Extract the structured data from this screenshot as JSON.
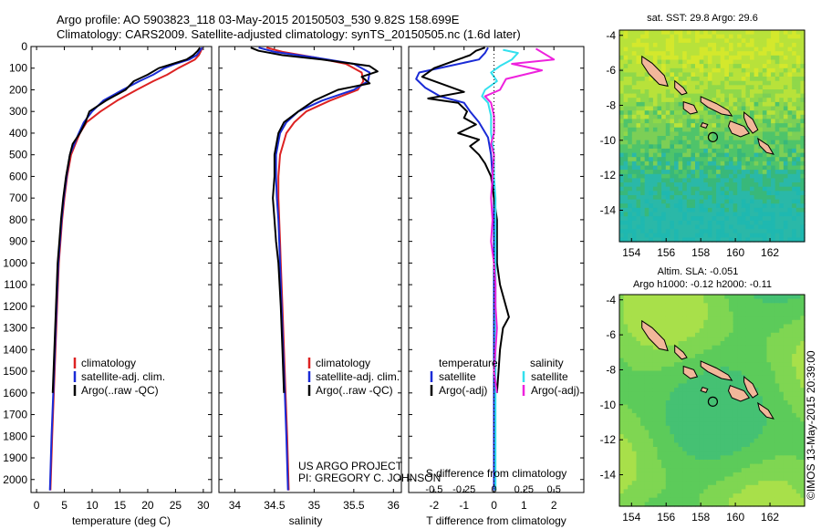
{
  "header": {
    "line1": "Argo profile: AO 5903823_118 03-May-2015 20150503_530 9.82S 158.699E",
    "line2": "Climatology: CARS2009. Satellite-adjusted climatology: synTS_20150505.nc (1.6d later)"
  },
  "credits": {
    "project": "US ARGO PROJECT",
    "pi": "PI: GREGORY C. JOHNSON",
    "imos": "©IMOS 13-May-2015 20:39:00"
  },
  "colors": {
    "climatology": "#dd2222",
    "satellite": "#1a2bd6",
    "argo": "#000000",
    "satellite_salinity": "#33e0ee",
    "argo_salinity": "#ee22dd"
  },
  "depth_axis": {
    "ylim": [
      0,
      2060
    ],
    "ticks": [
      0,
      100,
      200,
      300,
      400,
      500,
      600,
      700,
      800,
      900,
      1000,
      1100,
      1200,
      1300,
      1400,
      1500,
      1600,
      1700,
      1800,
      1900,
      2000
    ]
  },
  "chart_data": [
    {
      "type": "line",
      "id": "temperature",
      "xlabel": "temperature (deg C)",
      "xlim": [
        -1,
        31.5
      ],
      "xticks": [
        0,
        5,
        10,
        15,
        20,
        25,
        30
      ],
      "legend": [
        "climatology",
        "satellite-adj. clim.",
        "Argo(..raw -QC)"
      ],
      "series": [
        {
          "name": "climatology",
          "color_key": "climatology",
          "points": [
            [
              29.8,
              5
            ],
            [
              29.6,
              20
            ],
            [
              29.2,
              40
            ],
            [
              28.5,
              60
            ],
            [
              27.0,
              80
            ],
            [
              25.5,
              100
            ],
            [
              23.5,
              130
            ],
            [
              21.0,
              160
            ],
            [
              18.0,
              200
            ],
            [
              14.5,
              250
            ],
            [
              11.5,
              300
            ],
            [
              9.0,
              350
            ],
            [
              7.8,
              400
            ],
            [
              7.0,
              450
            ],
            [
              6.2,
              500
            ],
            [
              5.5,
              600
            ],
            [
              5.0,
              700
            ],
            [
              4.6,
              800
            ],
            [
              4.3,
              900
            ],
            [
              4.0,
              1000
            ],
            [
              3.7,
              1200
            ],
            [
              3.4,
              1400
            ],
            [
              3.1,
              1600
            ],
            [
              2.8,
              1800
            ],
            [
              2.5,
              2050
            ]
          ]
        },
        {
          "name": "satellite-adj. clim.",
          "color_key": "satellite",
          "points": [
            [
              29.8,
              5
            ],
            [
              29.4,
              20
            ],
            [
              28.8,
              40
            ],
            [
              27.5,
              60
            ],
            [
              25.0,
              80
            ],
            [
              23.0,
              100
            ],
            [
              21.0,
              130
            ],
            [
              18.5,
              160
            ],
            [
              15.5,
              200
            ],
            [
              12.0,
              250
            ],
            [
              10.0,
              300
            ],
            [
              8.5,
              350
            ],
            [
              7.6,
              400
            ],
            [
              6.8,
              450
            ],
            [
              6.0,
              500
            ],
            [
              5.4,
              600
            ],
            [
              4.9,
              700
            ],
            [
              4.5,
              800
            ],
            [
              4.2,
              900
            ],
            [
              3.9,
              1000
            ],
            [
              3.6,
              1200
            ],
            [
              3.3,
              1400
            ],
            [
              3.0,
              1600
            ],
            [
              2.7,
              1800
            ],
            [
              2.4,
              2050
            ]
          ]
        },
        {
          "name": "Argo(..raw -QC)",
          "color_key": "argo",
          "points": [
            [
              29.4,
              5
            ],
            [
              29.0,
              20
            ],
            [
              28.2,
              40
            ],
            [
              27.0,
              60
            ],
            [
              24.5,
              80
            ],
            [
              22.0,
              100
            ],
            [
              20.0,
              130
            ],
            [
              17.5,
              160
            ],
            [
              16.0,
              200
            ],
            [
              12.5,
              250
            ],
            [
              9.5,
              300
            ],
            [
              8.8,
              350
            ],
            [
              7.8,
              400
            ],
            [
              6.5,
              450
            ],
            [
              6.0,
              500
            ],
            [
              5.3,
              600
            ],
            [
              4.8,
              700
            ],
            [
              4.4,
              800
            ],
            [
              4.1,
              900
            ],
            [
              3.8,
              1000
            ],
            [
              3.5,
              1200
            ],
            [
              3.2,
              1400
            ],
            [
              2.9,
              1600
            ]
          ]
        }
      ]
    },
    {
      "type": "line",
      "id": "salinity",
      "xlabel": "salinity",
      "xlim": [
        33.8,
        36.1
      ],
      "xticks": [
        34,
        34.5,
        35,
        35.5,
        36
      ],
      "legend": [
        "climatology",
        "satellite-adj. clim.",
        "Argo(..raw -QC)"
      ],
      "series": [
        {
          "name": "climatology",
          "color_key": "climatology",
          "points": [
            [
              34.4,
              5
            ],
            [
              34.6,
              25
            ],
            [
              35.0,
              50
            ],
            [
              35.4,
              80
            ],
            [
              35.6,
              120
            ],
            [
              35.62,
              160
            ],
            [
              35.55,
              200
            ],
            [
              35.2,
              250
            ],
            [
              34.9,
              300
            ],
            [
              34.75,
              350
            ],
            [
              34.65,
              400
            ],
            [
              34.57,
              500
            ],
            [
              34.55,
              600
            ],
            [
              34.55,
              700
            ],
            [
              34.56,
              800
            ],
            [
              34.57,
              900
            ],
            [
              34.58,
              1000
            ],
            [
              34.6,
              1200
            ],
            [
              34.62,
              1400
            ],
            [
              34.64,
              1600
            ],
            [
              34.66,
              1800
            ],
            [
              34.68,
              2050
            ]
          ]
        },
        {
          "name": "satellite-adj. clim.",
          "color_key": "satellite",
          "points": [
            [
              34.3,
              5
            ],
            [
              34.5,
              25
            ],
            [
              35.0,
              50
            ],
            [
              35.5,
              80
            ],
            [
              35.7,
              120
            ],
            [
              35.68,
              160
            ],
            [
              35.5,
              200
            ],
            [
              35.1,
              250
            ],
            [
              34.8,
              300
            ],
            [
              34.65,
              350
            ],
            [
              34.57,
              400
            ],
            [
              34.52,
              500
            ],
            [
              34.52,
              600
            ],
            [
              34.53,
              700
            ],
            [
              34.55,
              800
            ],
            [
              34.56,
              900
            ],
            [
              34.57,
              1000
            ],
            [
              34.59,
              1200
            ],
            [
              34.61,
              1400
            ],
            [
              34.63,
              1600
            ],
            [
              34.65,
              1800
            ],
            [
              34.67,
              2050
            ]
          ]
        },
        {
          "name": "Argo(..raw -QC)",
          "color_key": "argo",
          "points": [
            [
              34.2,
              5
            ],
            [
              34.3,
              20
            ],
            [
              34.6,
              40
            ],
            [
              35.1,
              60
            ],
            [
              35.7,
              90
            ],
            [
              35.8,
              115
            ],
            [
              35.6,
              140
            ],
            [
              35.7,
              170
            ],
            [
              35.3,
              200
            ],
            [
              35.0,
              250
            ],
            [
              34.8,
              300
            ],
            [
              34.62,
              350
            ],
            [
              34.55,
              400
            ],
            [
              34.5,
              500
            ],
            [
              34.5,
              600
            ],
            [
              34.48,
              700
            ],
            [
              34.5,
              800
            ],
            [
              34.52,
              900
            ],
            [
              34.55,
              1000
            ],
            [
              34.58,
              1200
            ],
            [
              34.6,
              1400
            ],
            [
              34.62,
              1600
            ]
          ]
        }
      ]
    },
    {
      "type": "line",
      "id": "difference",
      "xlabel_top": "S difference from climatology",
      "xlabel_bottom": "T difference from climatology",
      "xlim": [
        -2.85,
        3.0
      ],
      "xticks": [
        -2,
        -1,
        0,
        1,
        2
      ],
      "s_ticks": [
        -0.5,
        -0.25,
        0,
        0.25,
        0.5
      ],
      "s_tick_labels": [
        "-0.5",
        "-0.25",
        "0",
        "0.25",
        "0.5"
      ],
      "legend_headers": [
        "temperature",
        "salinity"
      ],
      "legend": [
        "satellite",
        "Argo(-adj)",
        "satellite",
        "Argo(-adj)"
      ],
      "series": [
        {
          "name": "satellite",
          "group": "temperature",
          "color_key": "satellite",
          "points": [
            [
              -0.2,
              5
            ],
            [
              -0.3,
              30
            ],
            [
              -0.5,
              60
            ],
            [
              -1.5,
              90
            ],
            [
              -2.5,
              120
            ],
            [
              -2.6,
              150
            ],
            [
              -2.3,
              190
            ],
            [
              -1.8,
              230
            ],
            [
              -1.0,
              260
            ],
            [
              -0.8,
              300
            ],
            [
              -0.5,
              350
            ],
            [
              -0.2,
              420
            ],
            [
              -0.1,
              500
            ],
            [
              -0.05,
              600
            ],
            [
              0,
              700
            ],
            [
              0,
              1000
            ],
            [
              0,
              1500
            ],
            [
              0,
              2050
            ]
          ]
        },
        {
          "name": "Argo(-adj)",
          "group": "temperature",
          "color_key": "argo",
          "points": [
            [
              -0.3,
              5
            ],
            [
              -0.6,
              20
            ],
            [
              -0.8,
              40
            ],
            [
              -1.2,
              60
            ],
            [
              -2.0,
              100
            ],
            [
              -2.4,
              140
            ],
            [
              -1.0,
              210
            ],
            [
              -2.2,
              240
            ],
            [
              -1.2,
              260
            ],
            [
              -0.9,
              300
            ],
            [
              -1.0,
              330
            ],
            [
              -0.6,
              360
            ],
            [
              -1.2,
              400
            ],
            [
              -0.5,
              430
            ],
            [
              -0.8,
              460
            ],
            [
              -0.5,
              500
            ],
            [
              -0.3,
              540
            ],
            [
              -0.1,
              600
            ],
            [
              0,
              700
            ],
            [
              0.1,
              800
            ],
            [
              0.1,
              900
            ],
            [
              0.1,
              1000
            ],
            [
              0.2,
              1100
            ],
            [
              0.5,
              1250
            ],
            [
              0.3,
              1300
            ],
            [
              0.2,
              1400
            ],
            [
              0.15,
              1500
            ],
            [
              0.1,
              1600
            ]
          ]
        },
        {
          "name": "satellite",
          "group": "salinity",
          "color_key": "satellite_salinity",
          "points": [
            [
              0.3,
              15
            ],
            [
              0.8,
              30
            ],
            [
              0.6,
              60
            ],
            [
              0.2,
              90
            ],
            [
              -0.1,
              120
            ],
            [
              0.1,
              160
            ],
            [
              -0.3,
              200
            ],
            [
              -0.4,
              230
            ],
            [
              -0.2,
              260
            ],
            [
              -0.1,
              320
            ],
            [
              -0.1,
              400
            ],
            [
              0,
              500
            ],
            [
              0,
              600
            ],
            [
              0.05,
              700
            ],
            [
              0.05,
              1000
            ],
            [
              0.05,
              1500
            ],
            [
              0.05,
              2050
            ]
          ]
        },
        {
          "name": "Argo(-adj)",
          "group": "salinity",
          "color_key": "argo_salinity",
          "points": [
            [
              1.4,
              10
            ],
            [
              2.0,
              60
            ],
            [
              0.6,
              80
            ],
            [
              1.6,
              110
            ],
            [
              0.4,
              150
            ],
            [
              0.2,
              200
            ],
            [
              -0.3,
              230
            ],
            [
              -0.1,
              260
            ],
            [
              0,
              320
            ],
            [
              0,
              400
            ],
            [
              -0.1,
              450
            ],
            [
              0,
              500
            ],
            [
              -0.05,
              600
            ],
            [
              -0.1,
              700
            ],
            [
              -0.05,
              800
            ],
            [
              -0.1,
              900
            ],
            [
              0,
              1000
            ],
            [
              0.05,
              1100
            ],
            [
              0.05,
              1200
            ],
            [
              0.1,
              1300
            ],
            [
              0.05,
              1400
            ],
            [
              0,
              1500
            ],
            [
              0.1,
              1600
            ]
          ]
        }
      ]
    },
    {
      "type": "heatmap",
      "id": "sst_map",
      "title": "sat. SST: 29.8 Argo: 29.6",
      "xlim": [
        153.3,
        164.0
      ],
      "ylim": [
        -15.8,
        -3.7
      ],
      "xticks": [
        154,
        156,
        158,
        160,
        162
      ],
      "yticks": [
        -4,
        -6,
        -8,
        -10,
        -12,
        -14
      ],
      "argo_position": [
        158.699,
        -9.82
      ]
    },
    {
      "type": "heatmap",
      "id": "sla_map",
      "title": "Altim. SLA: -0.051",
      "subtitle": "Argo h1000: -0.12 h2000: -0.11",
      "xlim": [
        153.3,
        164.0
      ],
      "ylim": [
        -15.8,
        -3.7
      ],
      "xticks": [
        154,
        156,
        158,
        160,
        162
      ],
      "yticks": [
        -4,
        -6,
        -8,
        -10,
        -12,
        -14
      ],
      "argo_position": [
        158.699,
        -9.82
      ]
    }
  ]
}
